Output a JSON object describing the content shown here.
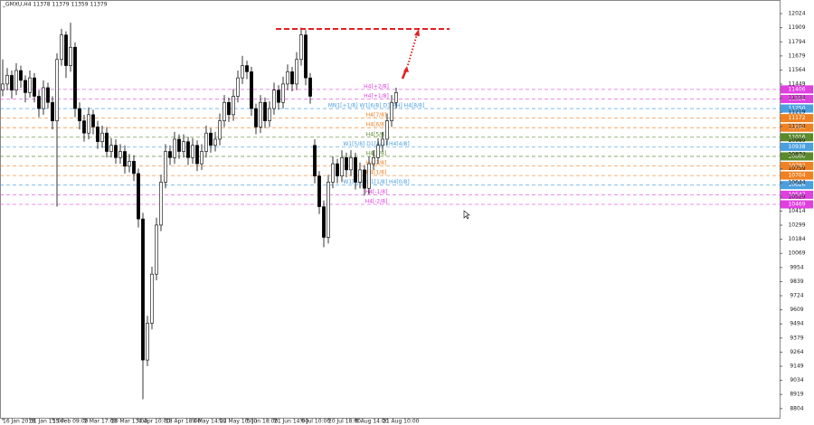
{
  "chart_data": {
    "type": "candlestick",
    "title": "_GMXU,H4 11378 11379 11359 11379",
    "x": [
      1,
      2,
      3,
      4,
      5,
      6,
      7,
      8,
      9,
      10,
      11,
      12,
      13,
      14,
      15,
      16,
      17,
      18,
      19,
      20,
      21,
      22,
      23,
      24,
      25,
      26,
      27,
      28,
      29,
      30,
      31,
      32,
      33,
      34,
      35,
      36,
      37,
      38,
      39,
      40,
      41,
      42,
      43,
      44,
      45,
      46,
      47,
      48,
      49,
      50,
      51,
      52,
      53,
      54,
      55,
      56,
      57,
      58,
      59,
      60,
      61,
      62,
      63,
      64,
      65,
      66,
      67,
      68,
      69,
      70,
      71,
      72,
      73,
      74,
      75,
      76,
      77,
      78,
      79,
      80,
      81,
      82,
      83,
      84,
      85,
      86,
      87,
      88
    ],
    "open": [
      11400,
      11450,
      11520,
      11400,
      11560,
      11480,
      11380,
      11500,
      11350,
      11250,
      11420,
      11300,
      11150,
      11650,
      11850,
      11600,
      11750,
      11250,
      11150,
      11050,
      11200,
      11100,
      10980,
      11050,
      10900,
      10950,
      10850,
      10900,
      10780,
      10820,
      10720,
      10350,
      9200,
      9500,
      9900,
      10300,
      10650,
      10900,
      10850,
      11000,
      10900,
      10980,
      10850,
      10950,
      10800,
      10900,
      11050,
      10950,
      11000,
      11150,
      11300,
      11200,
      11350,
      11500,
      11600,
      11550,
      11250,
      11100,
      11300,
      11150,
      11250,
      11400,
      11300,
      11450,
      11550,
      11450,
      11650,
      11850,
      11500,
      10950,
      10700,
      10450,
      10200,
      10650,
      10800,
      10700,
      10850,
      10750,
      10850,
      10650,
      10750,
      10600,
      10800,
      10850,
      10950,
      11000,
      11150,
      11300
    ],
    "high": [
      11650,
      11580,
      11560,
      11620,
      11600,
      11520,
      11560,
      11540,
      11400,
      11480,
      11460,
      11350,
      11700,
      11900,
      11880,
      11950,
      11790,
      11300,
      11200,
      11260,
      11240,
      11150,
      11110,
      11100,
      11010,
      11000,
      10960,
      10950,
      10880,
      10870,
      10760,
      10400,
      9560,
      9960,
      10360,
      10710,
      10960,
      10950,
      11060,
      11040,
      11040,
      11020,
      11010,
      10990,
      10960,
      11110,
      11090,
      11060,
      11210,
      11360,
      11340,
      11410,
      11560,
      11680,
      11640,
      11590,
      11290,
      11360,
      11340,
      11310,
      11460,
      11440,
      11510,
      11610,
      11590,
      11710,
      11910,
      11890,
      11540,
      11000,
      10740,
      10500,
      10710,
      10860,
      10840,
      10910,
      10890,
      10910,
      10890,
      10810,
      10790,
      10860,
      10910,
      11010,
      11060,
      11210,
      11360,
      11420
    ],
    "low": [
      11350,
      11400,
      11330,
      11360,
      11420,
      11300,
      11340,
      11300,
      11180,
      11200,
      11250,
      11080,
      10450,
      11600,
      11500,
      11550,
      11180,
      11080,
      10980,
      11000,
      11040,
      10920,
      10930,
      10850,
      10850,
      10800,
      10800,
      10720,
      10730,
      10660,
      10280,
      8880,
      9150,
      9450,
      9850,
      10250,
      10600,
      10790,
      10800,
      10840,
      10850,
      10790,
      10800,
      10740,
      10750,
      10850,
      10890,
      10900,
      10950,
      11100,
      11140,
      11150,
      11300,
      11450,
      11490,
      11190,
      11040,
      11050,
      11090,
      11100,
      11200,
      11240,
      11250,
      11400,
      11390,
      11400,
      11600,
      11440,
      11290,
      10640,
      10390,
      10120,
      10150,
      10600,
      10640,
      10650,
      10690,
      10700,
      10590,
      10600,
      10540,
      10550,
      10750,
      10800,
      10900,
      10950,
      11100,
      11250
    ],
    "close": [
      11450,
      11520,
      11400,
      11560,
      11480,
      11380,
      11500,
      11350,
      11250,
      11420,
      11300,
      11150,
      11650,
      11850,
      11600,
      11750,
      11250,
      11150,
      11050,
      11200,
      11100,
      10980,
      11050,
      10900,
      10950,
      10850,
      10900,
      10780,
      10820,
      10720,
      10350,
      9200,
      9500,
      9900,
      10300,
      10650,
      10900,
      10850,
      11000,
      10900,
      10980,
      10850,
      10950,
      10800,
      10900,
      11050,
      10950,
      11000,
      11150,
      11300,
      11200,
      11350,
      11500,
      11600,
      11550,
      11250,
      11100,
      11300,
      11150,
      11250,
      11400,
      11300,
      11450,
      11550,
      11450,
      11650,
      11850,
      11500,
      11350,
      10700,
      10450,
      10200,
      10650,
      10800,
      10700,
      10850,
      10750,
      10850,
      10650,
      10750,
      10600,
      10800,
      10850,
      10950,
      11000,
      11150,
      11300,
      11380
    ],
    "up_color": "#ffffff",
    "down_color": "#000000",
    "xlim": [
      0.4,
      172.8
    ],
    "xticks": [
      {
        "value": 1,
        "label": "16 Jan 2018"
      },
      {
        "value": 7,
        "label": "31 Jan 13:00"
      },
      {
        "value": 12,
        "label": "15 Feb 09:00"
      },
      {
        "value": 19,
        "label": "2 Mar 17:00"
      },
      {
        "value": 25,
        "label": "20 Mar 13:00"
      },
      {
        "value": 31,
        "label": "4 Apr 10:00"
      },
      {
        "value": 37,
        "label": "18 Apr 18:00"
      },
      {
        "value": 43,
        "label": "4 May 14:00"
      },
      {
        "value": 49,
        "label": "22 May 10:00"
      },
      {
        "value": 55,
        "label": "5 Jun 18:00"
      },
      {
        "value": 61,
        "label": "21 Jun 14:00"
      },
      {
        "value": 67,
        "label": "6 Jul 10:00"
      },
      {
        "value": 73,
        "label": "20 Jul 18:00"
      },
      {
        "value": 79,
        "label": "6 Aug 14:00"
      },
      {
        "value": 85,
        "label": "21 Aug 10:00"
      }
    ],
    "ylim": [
      8729,
      12135
    ],
    "yticks": [
      12024,
      11909,
      11794,
      11679,
      11564,
      11449,
      11334,
      11219,
      11104,
      10989,
      10874,
      10759,
      10644,
      10529,
      10414,
      10299,
      10184,
      10069,
      9954,
      9839,
      9724,
      9609,
      9494,
      9379,
      9264,
      9149,
      9034,
      8919,
      8804
    ],
    "levels": [
      {
        "value": 11406,
        "label": "H4[+2/8]",
        "color": "#e040e0"
      },
      {
        "value": 11328,
        "label": "H4[+1/8]",
        "color": "#e040e0"
      },
      {
        "value": 11250,
        "label": "MN1[+1/8] W1[6/8] D1[PH] H4[8/8]",
        "color": "#4a9fe0"
      },
      {
        "value": 11172,
        "label": "H4[7/8]",
        "color": "#f08020"
      },
      {
        "value": 11094,
        "label": "H4[6/8]",
        "color": "#f08020"
      },
      {
        "value": 11016,
        "label": "H4[5/8]",
        "color": "#5a8a2a"
      },
      {
        "value": 10938,
        "label": "W1[5/8] D1[4/8] H4[4/8]",
        "color": "#4a9fe0"
      },
      {
        "value": 10860,
        "label": "H4[3/8]",
        "color": "#5a8a2a"
      },
      {
        "value": 10782,
        "label": "H4[2/8]",
        "color": "#f08020"
      },
      {
        "value": 10704,
        "label": "H4[1/8]",
        "color": "#f08020"
      },
      {
        "value": 10626,
        "label": "W1[4/8] D1[1/8] H4[0/8]",
        "color": "#4a9fe0"
      },
      {
        "value": 10547,
        "label": "H4[-1/8]",
        "color": "#e040e0"
      },
      {
        "value": 10469,
        "label": "H4[-2/8]",
        "color": "#e040e0"
      }
    ]
  }
}
